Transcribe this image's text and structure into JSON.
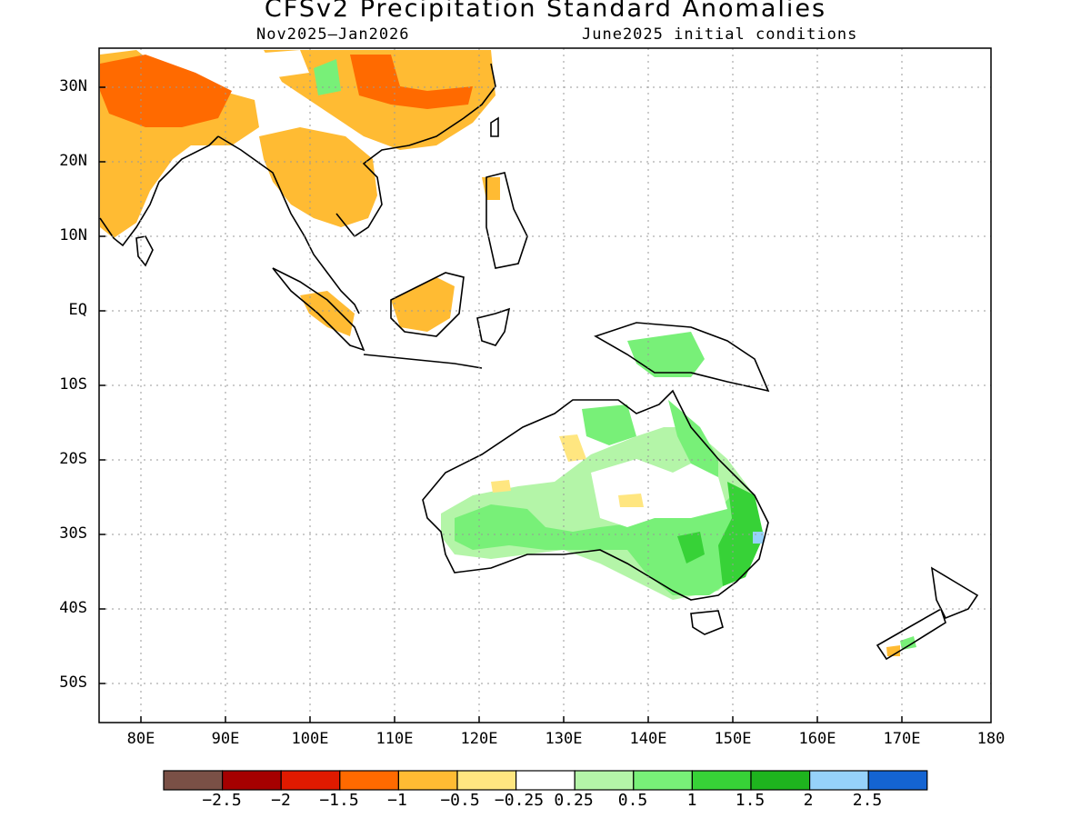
{
  "title": "CFSv2 Precipitation Standard Anomalies",
  "subtitle_left": "Nov2025—Jan2026",
  "subtitle_right": "June2025 initial conditions",
  "lat_labels": [
    "30N",
    "20N",
    "10N",
    "EQ",
    "10S",
    "20S",
    "30S",
    "40S",
    "50S"
  ],
  "lon_labels": [
    "80E",
    "90E",
    "100E",
    "110E",
    "120E",
    "130E",
    "140E",
    "150E",
    "160E",
    "170E",
    "180"
  ],
  "colorbar": {
    "labels": [
      "−2.5",
      "−2",
      "−1.5",
      "−1",
      "−0.5",
      "−0.25",
      "0.25",
      "0.5",
      "1",
      "1.5",
      "2",
      "2.5"
    ],
    "colors": [
      "#7a5046",
      "#a50000",
      "#e01a00",
      "#ff6a00",
      "#ffbb33",
      "#ffe680",
      "#ffffff",
      "#b4f5a8",
      "#78f078",
      "#37d237",
      "#1eb41e",
      "#96d2fa",
      "#1464d2"
    ]
  },
  "map": {
    "region": "Indo-Pacific and Australia",
    "lon_range": [
      75,
      180
    ],
    "lat_range": [
      -55,
      35
    ],
    "gridlines": true
  }
}
